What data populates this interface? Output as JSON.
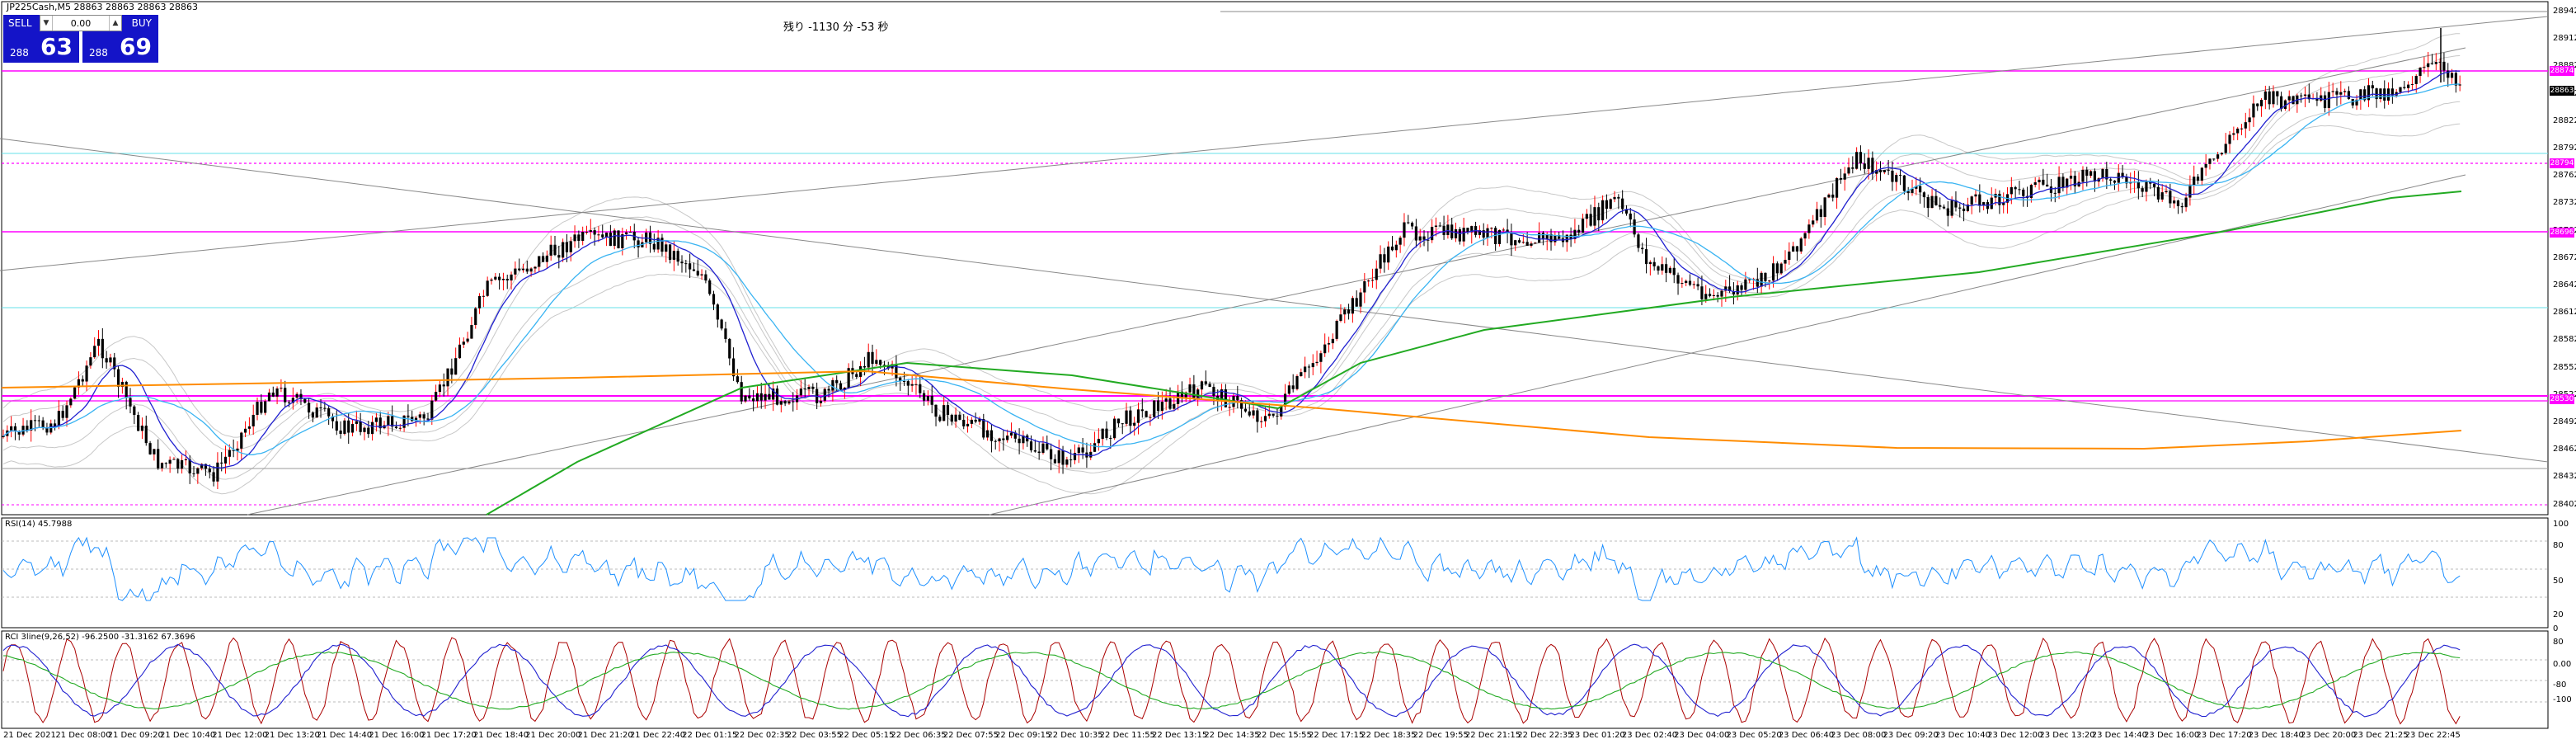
{
  "symbol_title": "JP225Cash,M5  28863 28863 28863 28863",
  "trade_panel": {
    "sell_label": "SELL",
    "buy_label": "BUY",
    "lots": "0.00",
    "sell_small": "288",
    "sell_big": "63",
    "buy_small": "288",
    "buy_big": "69",
    "arrow_down": "▼",
    "arrow_up": "▲"
  },
  "countdown": "残り -1130 分 -53 秒",
  "indicators": {
    "rsi_title": "RSI(14) 45.7988",
    "rci_title": "RCI 3line(9,26,52) -96.2500 -31.3162 67.3696"
  },
  "price_axis": [
    "28942",
    "28912",
    "28882",
    "28852",
    "28822",
    "28792",
    "28762",
    "28732",
    "28702",
    "28672",
    "28642",
    "28612",
    "28582",
    "28552",
    "28522",
    "28492",
    "28462",
    "28432",
    "28402"
  ],
  "current_price_tag": "28863",
  "line_tags": [
    "28874",
    "28794",
    "28696",
    "28530"
  ],
  "rsi_axis": [
    "100",
    "80",
    "50",
    "20",
    "0"
  ],
  "rci_axis": [
    "80",
    "0.00",
    "-80",
    "-100"
  ],
  "time_axis": [
    "21 Dec 2021",
    "21 Dec 08:00",
    "21 Dec 09:20",
    "21 Dec 10:40",
    "21 Dec 12:00",
    "21 Dec 13:20",
    "21 Dec 14:40",
    "21 Dec 16:00",
    "21 Dec 17:20",
    "21 Dec 18:40",
    "21 Dec 20:00",
    "21 Dec 21:20",
    "21 Dec 22:40",
    "22 Dec 01:15",
    "22 Dec 02:35",
    "22 Dec 03:55",
    "22 Dec 05:15",
    "22 Dec 06:35",
    "22 Dec 07:55",
    "22 Dec 09:15",
    "22 Dec 10:35",
    "22 Dec 11:55",
    "22 Dec 13:15",
    "22 Dec 14:35",
    "22 Dec 15:55",
    "22 Dec 17:15",
    "22 Dec 18:35",
    "22 Dec 19:55",
    "22 Dec 21:15",
    "22 Dec 22:35",
    "23 Dec 01:20",
    "23 Dec 02:40",
    "23 Dec 04:00",
    "23 Dec 05:20",
    "23 Dec 06:40",
    "23 Dec 08:00",
    "23 Dec 09:20",
    "23 Dec 10:40",
    "23 Dec 12:00",
    "23 Dec 13:20",
    "23 Dec 14:40",
    "23 Dec 16:00",
    "23 Dec 17:20",
    "23 Dec 18:40",
    "23 Dec 20:00",
    "23 Dec 21:25",
    "23 Dec 22:45"
  ],
  "colors": {
    "bg": "#ffffff",
    "candle": "#000000",
    "bull_wick": "#ff0000",
    "ma_blue": "#2020d0",
    "ma_light": "#3ab4f2",
    "ma_green": "#22aa22",
    "ma_orange": "#ff8c00",
    "magenta": "#ff00ff",
    "cyan": "#66e0e8",
    "band": "#c8c8c8",
    "panel_blue": "#1414c8",
    "rsi_line": "#1e90ff",
    "rci_short": "#aa0000",
    "rci_mid": "#2020d0",
    "rci_long": "#22aa22"
  }
}
